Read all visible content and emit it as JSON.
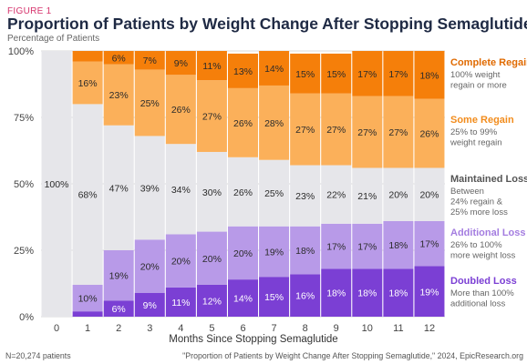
{
  "figure_label": "FIGURE 1",
  "footer": {
    "left": "N=20,274 patients",
    "right": "\"Proportion of Patients by Weight Change After Stopping Semaglutide,\" 2024, EpicResearch.org"
  },
  "chart_data": {
    "type": "bar",
    "stacked": true,
    "title": "Proportion of Patients by Weight Change After Stopping Semaglutide",
    "subtitle": "Percentage of Patients",
    "xlabel": "Months Since Stopping Semaglutide",
    "ylabel": "",
    "ylim": [
      0,
      100
    ],
    "yticks": [
      "0%",
      "25%",
      "50%",
      "75%",
      "100%"
    ],
    "categories": [
      "0",
      "1",
      "2",
      "3",
      "4",
      "5",
      "6",
      "7",
      "8",
      "9",
      "10",
      "11",
      "12"
    ],
    "legend_position": "right",
    "series": [
      {
        "name": "Doubled Loss",
        "description": [
          "More than 100%",
          "additional loss"
        ],
        "color": "#7b3fd4",
        "text_color": "#ffffff",
        "name_color": "#7b3fd4",
        "values": [
          0,
          2,
          6,
          9,
          11,
          12,
          14,
          15,
          16,
          18,
          18,
          18,
          19
        ],
        "labels": [
          "",
          "",
          "6%",
          "9%",
          "11%",
          "12%",
          "14%",
          "15%",
          "16%",
          "18%",
          "18%",
          "18%",
          "19%"
        ]
      },
      {
        "name": "Additional Loss",
        "description": [
          "26% to 100%",
          "more weight loss"
        ],
        "color": "#b89ae8",
        "text_color": "#2b2b2b",
        "name_color": "#a47de0",
        "values": [
          0,
          10,
          19,
          20,
          20,
          20,
          20,
          19,
          18,
          17,
          17,
          18,
          17
        ],
        "labels": [
          "",
          "10%",
          "19%",
          "20%",
          "20%",
          "20%",
          "20%",
          "19%",
          "18%",
          "17%",
          "17%",
          "18%",
          "17%"
        ]
      },
      {
        "name": "Maintained Loss",
        "description": [
          "Between",
          "24% regain &",
          "25% more loss"
        ],
        "color": "#e6e6ea",
        "text_color": "#2b2b2b",
        "name_color": "#555555",
        "values": [
          100,
          68,
          47,
          39,
          34,
          30,
          26,
          25,
          23,
          22,
          21,
          20,
          20
        ],
        "labels": [
          "100%",
          "68%",
          "47%",
          "39%",
          "34%",
          "30%",
          "26%",
          "25%",
          "23%",
          "22%",
          "21%",
          "20%",
          "20%"
        ]
      },
      {
        "name": "Some Regain",
        "description": [
          "25% to 99%",
          "weight regain"
        ],
        "color": "#fbb05a",
        "text_color": "#2b2b2b",
        "name_color": "#f28c1c",
        "values": [
          0,
          16,
          23,
          25,
          26,
          27,
          26,
          28,
          27,
          27,
          27,
          27,
          26
        ],
        "labels": [
          "",
          "16%",
          "23%",
          "25%",
          "26%",
          "27%",
          "26%",
          "28%",
          "27%",
          "27%",
          "27%",
          "27%",
          "26%"
        ]
      },
      {
        "name": "Complete Regain",
        "description": [
          "100% weight",
          "regain or more"
        ],
        "color": "#f57f0a",
        "text_color": "#2b2b2b",
        "name_color": "#e06a00",
        "values": [
          0,
          4,
          6,
          7,
          9,
          11,
          13,
          14,
          15,
          15,
          17,
          17,
          18
        ],
        "labels": [
          "",
          "",
          "6%",
          "7%",
          "9%",
          "11%",
          "13%",
          "14%",
          "15%",
          "15%",
          "17%",
          "17%",
          "18%"
        ]
      }
    ]
  }
}
